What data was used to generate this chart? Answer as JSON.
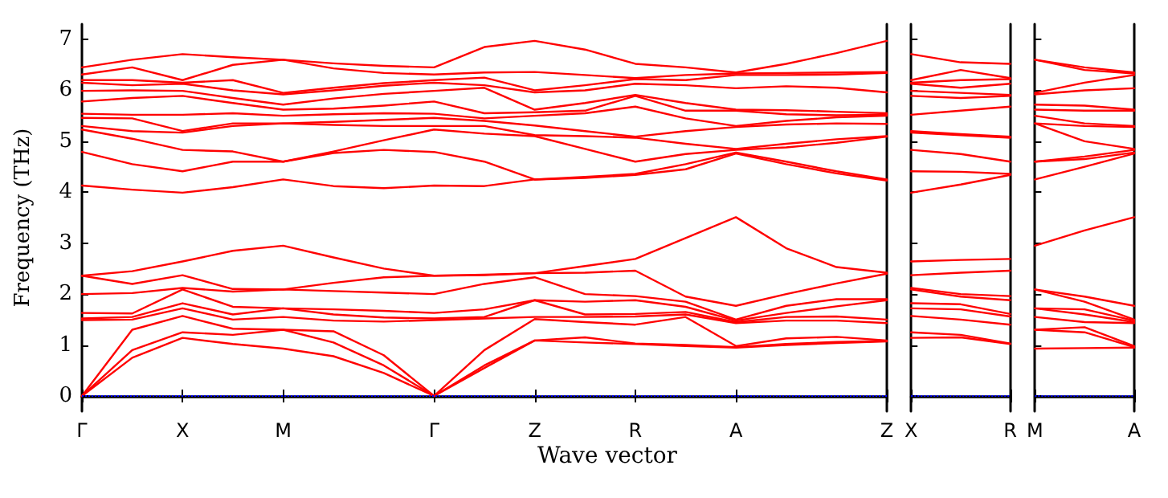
{
  "chart_data": [
    {
      "type": "line",
      "xlabel": "Wave vector",
      "ylabel": "Frequency (THz)",
      "marker": "none",
      "line_style": "solid",
      "categories": [
        "Γ",
        null,
        "X",
        null,
        "M",
        null,
        null,
        "Γ",
        null,
        "Z",
        null,
        "R",
        null,
        "A",
        null,
        null,
        "Z"
      ],
      "ylim": [
        -0.3,
        7.3
      ],
      "yticks": [
        0,
        1,
        2,
        3,
        4,
        5,
        6,
        7
      ],
      "ref_lines": [
        {
          "axis": "y",
          "value": 0,
          "color": "#0000ff",
          "line_style": "dotted"
        }
      ],
      "series": [
        {
          "color": "#ff0000",
          "values": [
            0,
            0.75,
            1.14,
            1.02,
            0.93,
            0.78,
            0.45,
            0,
            0.55,
            1.09,
            1.05,
            1.02,
            0.98,
            0.95,
            1.0,
            1.04,
            1.07
          ]
        },
        {
          "color": "#ff0000",
          "values": [
            0,
            0.9,
            1.25,
            1.2,
            1.3,
            1.05,
            0.6,
            0,
            0.6,
            1.09,
            1.15,
            1.03,
            1.0,
            0.96,
            1.02,
            1.06,
            1.08
          ]
        },
        {
          "color": "#ff0000",
          "values": [
            0,
            1.3,
            1.57,
            1.32,
            1.3,
            1.27,
            0.8,
            0,
            0.9,
            1.51,
            1.45,
            1.4,
            1.55,
            0.98,
            1.13,
            1.16,
            1.09
          ]
        },
        {
          "color": "#ff0000",
          "values": [
            1.49,
            1.5,
            1.72,
            1.5,
            1.55,
            1.48,
            1.46,
            1.49,
            1.52,
            1.55,
            1.55,
            1.56,
            1.6,
            1.43,
            1.48,
            1.48,
            1.43
          ]
        },
        {
          "color": "#ff0000",
          "values": [
            1.52,
            1.55,
            1.82,
            1.6,
            1.72,
            1.6,
            1.54,
            1.52,
            1.55,
            1.88,
            1.6,
            1.61,
            1.65,
            1.45,
            1.55,
            1.56,
            1.5
          ]
        },
        {
          "color": "#ff0000",
          "values": [
            1.63,
            1.62,
            2.09,
            1.75,
            1.72,
            1.7,
            1.67,
            1.63,
            1.7,
            1.88,
            1.85,
            1.88,
            1.75,
            1.48,
            1.63,
            1.76,
            1.88
          ]
        },
        {
          "color": "#ff0000",
          "values": [
            2.0,
            2.02,
            2.12,
            2.05,
            2.09,
            2.06,
            2.03,
            2.0,
            2.2,
            2.33,
            2.0,
            1.96,
            1.85,
            1.5,
            1.77,
            1.9,
            1.9
          ]
        },
        {
          "color": "#ff0000",
          "values": [
            2.36,
            2.2,
            2.37,
            2.1,
            2.09,
            2.22,
            2.33,
            2.36,
            2.37,
            2.41,
            2.42,
            2.46,
            1.95,
            1.77,
            2.0,
            2.21,
            2.4
          ]
        },
        {
          "color": "#ff0000",
          "values": [
            2.36,
            2.45,
            2.64,
            2.85,
            2.95,
            2.72,
            2.5,
            2.36,
            2.38,
            2.41,
            2.55,
            2.69,
            3.1,
            3.51,
            2.9,
            2.53,
            2.42
          ]
        },
        {
          "color": "#ff0000",
          "values": [
            4.13,
            4.05,
            3.99,
            4.1,
            4.25,
            4.12,
            4.08,
            4.13,
            4.12,
            4.25,
            4.28,
            4.34,
            4.45,
            4.76,
            4.55,
            4.37,
            4.23
          ]
        },
        {
          "color": "#ff0000",
          "values": [
            4.79,
            4.55,
            4.41,
            4.6,
            4.6,
            4.77,
            4.83,
            4.79,
            4.6,
            4.25,
            4.3,
            4.36,
            4.55,
            4.78,
            4.6,
            4.41,
            4.25
          ]
        },
        {
          "color": "#ff0000",
          "values": [
            5.23,
            5.05,
            4.83,
            4.8,
            4.6,
            4.8,
            5.02,
            5.23,
            5.15,
            5.1,
            4.85,
            4.6,
            4.75,
            4.83,
            4.88,
            4.97,
            5.09
          ]
        },
        {
          "color": "#ff0000",
          "values": [
            5.3,
            5.2,
            5.17,
            5.3,
            5.35,
            5.32,
            5.3,
            5.3,
            5.3,
            5.12,
            5.1,
            5.07,
            4.95,
            4.85,
            4.95,
            5.04,
            5.1
          ]
        },
        {
          "color": "#ff0000",
          "values": [
            5.46,
            5.45,
            5.2,
            5.35,
            5.35,
            5.38,
            5.42,
            5.46,
            5.4,
            5.31,
            5.2,
            5.09,
            5.2,
            5.28,
            5.33,
            5.35,
            5.34
          ]
        },
        {
          "color": "#ff0000",
          "values": [
            5.54,
            5.52,
            5.52,
            5.55,
            5.5,
            5.53,
            5.55,
            5.54,
            5.45,
            5.5,
            5.55,
            5.68,
            5.45,
            5.3,
            5.4,
            5.47,
            5.5
          ]
        },
        {
          "color": "#ff0000",
          "values": [
            5.78,
            5.85,
            5.89,
            5.75,
            5.62,
            5.64,
            5.7,
            5.78,
            5.55,
            5.57,
            5.6,
            5.89,
            5.6,
            5.6,
            5.53,
            5.51,
            5.52
          ]
        },
        {
          "color": "#ff0000",
          "values": [
            5.99,
            6.0,
            5.99,
            5.85,
            5.72,
            5.84,
            5.93,
            5.99,
            6.05,
            5.62,
            5.75,
            5.91,
            5.75,
            5.62,
            5.61,
            5.58,
            5.55
          ]
        },
        {
          "color": "#ff0000",
          "values": [
            6.15,
            6.1,
            6.13,
            6.0,
            5.92,
            6.0,
            6.09,
            6.15,
            6.1,
            5.96,
            6.0,
            6.13,
            6.1,
            6.04,
            6.08,
            6.05,
            5.96
          ]
        },
        {
          "color": "#ff0000",
          "values": [
            6.2,
            6.2,
            6.15,
            6.2,
            5.95,
            6.05,
            6.14,
            6.2,
            6.25,
            6.0,
            6.1,
            6.22,
            6.2,
            6.3,
            6.3,
            6.31,
            6.34
          ]
        },
        {
          "color": "#ff0000",
          "values": [
            6.31,
            6.45,
            6.2,
            6.5,
            6.6,
            6.43,
            6.34,
            6.31,
            6.35,
            6.36,
            6.3,
            6.24,
            6.3,
            6.33,
            6.34,
            6.35,
            6.36
          ]
        },
        {
          "color": "#ff0000",
          "values": [
            6.45,
            6.6,
            6.71,
            6.65,
            6.6,
            6.53,
            6.48,
            6.45,
            6.85,
            6.97,
            6.8,
            6.52,
            6.45,
            6.35,
            6.52,
            6.73,
            6.97
          ]
        }
      ]
    },
    {
      "type": "line",
      "marker": "none",
      "line_style": "solid",
      "tick_labels": "x",
      "categories": [
        "X",
        null,
        "R"
      ],
      "ylim": [
        -0.3,
        7.3
      ],
      "yticks": [
        0,
        1,
        2,
        3,
        4,
        5,
        6,
        7
      ],
      "ref_lines": [
        {
          "axis": "y",
          "value": 0,
          "color": "#0000ff",
          "line_style": "dotted"
        }
      ],
      "series": [
        {
          "color": "#ff0000",
          "values": [
            1.14,
            1.15,
            1.02
          ]
        },
        {
          "color": "#ff0000",
          "values": [
            1.25,
            1.2,
            1.03
          ]
        },
        {
          "color": "#ff0000",
          "values": [
            1.57,
            1.5,
            1.4
          ]
        },
        {
          "color": "#ff0000",
          "values": [
            1.72,
            1.7,
            1.56
          ]
        },
        {
          "color": "#ff0000",
          "values": [
            1.82,
            1.8,
            1.61
          ]
        },
        {
          "color": "#ff0000",
          "values": [
            2.09,
            1.95,
            1.88
          ]
        },
        {
          "color": "#ff0000",
          "values": [
            2.12,
            2.0,
            1.96
          ]
        },
        {
          "color": "#ff0000",
          "values": [
            2.37,
            2.42,
            2.46
          ]
        },
        {
          "color": "#ff0000",
          "values": [
            2.64,
            2.67,
            2.69
          ]
        },
        {
          "color": "#ff0000",
          "values": [
            3.99,
            4.15,
            4.34
          ]
        },
        {
          "color": "#ff0000",
          "values": [
            4.41,
            4.4,
            4.36
          ]
        },
        {
          "color": "#ff0000",
          "values": [
            4.83,
            4.75,
            4.6
          ]
        },
        {
          "color": "#ff0000",
          "values": [
            5.17,
            5.12,
            5.07
          ]
        },
        {
          "color": "#ff0000",
          "values": [
            5.2,
            5.14,
            5.09
          ]
        },
        {
          "color": "#ff0000",
          "values": [
            5.52,
            5.6,
            5.68
          ]
        },
        {
          "color": "#ff0000",
          "values": [
            5.89,
            5.85,
            5.89
          ]
        },
        {
          "color": "#ff0000",
          "values": [
            5.99,
            5.95,
            5.91
          ]
        },
        {
          "color": "#ff0000",
          "values": [
            6.13,
            6.05,
            6.13
          ]
        },
        {
          "color": "#ff0000",
          "values": [
            6.15,
            6.2,
            6.22
          ]
        },
        {
          "color": "#ff0000",
          "values": [
            6.2,
            6.4,
            6.24
          ]
        },
        {
          "color": "#ff0000",
          "values": [
            6.71,
            6.55,
            6.52
          ]
        }
      ]
    },
    {
      "type": "line",
      "marker": "none",
      "line_style": "solid",
      "tick_labels": "x",
      "categories": [
        "M",
        null,
        "A"
      ],
      "ylim": [
        -0.3,
        7.3
      ],
      "yticks": [
        0,
        1,
        2,
        3,
        4,
        5,
        6,
        7
      ],
      "ref_lines": [
        {
          "axis": "y",
          "value": 0,
          "color": "#0000ff",
          "line_style": "dotted"
        }
      ],
      "series": [
        {
          "color": "#ff0000",
          "values": [
            0.93,
            0.94,
            0.95
          ]
        },
        {
          "color": "#ff0000",
          "values": [
            1.3,
            1.25,
            0.96
          ]
        },
        {
          "color": "#ff0000",
          "values": [
            1.3,
            1.35,
            0.98
          ]
        },
        {
          "color": "#ff0000",
          "values": [
            1.55,
            1.45,
            1.43
          ]
        },
        {
          "color": "#ff0000",
          "values": [
            1.72,
            1.6,
            1.45
          ]
        },
        {
          "color": "#ff0000",
          "values": [
            1.72,
            1.7,
            1.48
          ]
        },
        {
          "color": "#ff0000",
          "values": [
            2.09,
            1.85,
            1.5
          ]
        },
        {
          "color": "#ff0000",
          "values": [
            2.09,
            1.95,
            1.77
          ]
        },
        {
          "color": "#ff0000",
          "values": [
            2.95,
            3.25,
            3.51
          ]
        },
        {
          "color": "#ff0000",
          "values": [
            4.25,
            4.5,
            4.76
          ]
        },
        {
          "color": "#ff0000",
          "values": [
            4.6,
            4.65,
            4.78
          ]
        },
        {
          "color": "#ff0000",
          "values": [
            4.6,
            4.7,
            4.83
          ]
        },
        {
          "color": "#ff0000",
          "values": [
            5.35,
            5.0,
            4.85
          ]
        },
        {
          "color": "#ff0000",
          "values": [
            5.35,
            5.3,
            5.28
          ]
        },
        {
          "color": "#ff0000",
          "values": [
            5.5,
            5.35,
            5.3
          ]
        },
        {
          "color": "#ff0000",
          "values": [
            5.62,
            5.6,
            5.6
          ]
        },
        {
          "color": "#ff0000",
          "values": [
            5.72,
            5.7,
            5.62
          ]
        },
        {
          "color": "#ff0000",
          "values": [
            5.92,
            6.0,
            6.04
          ]
        },
        {
          "color": "#ff0000",
          "values": [
            5.95,
            6.15,
            6.3
          ]
        },
        {
          "color": "#ff0000",
          "values": [
            6.6,
            6.4,
            6.33
          ]
        },
        {
          "color": "#ff0000",
          "values": [
            6.6,
            6.45,
            6.35
          ]
        }
      ]
    }
  ]
}
